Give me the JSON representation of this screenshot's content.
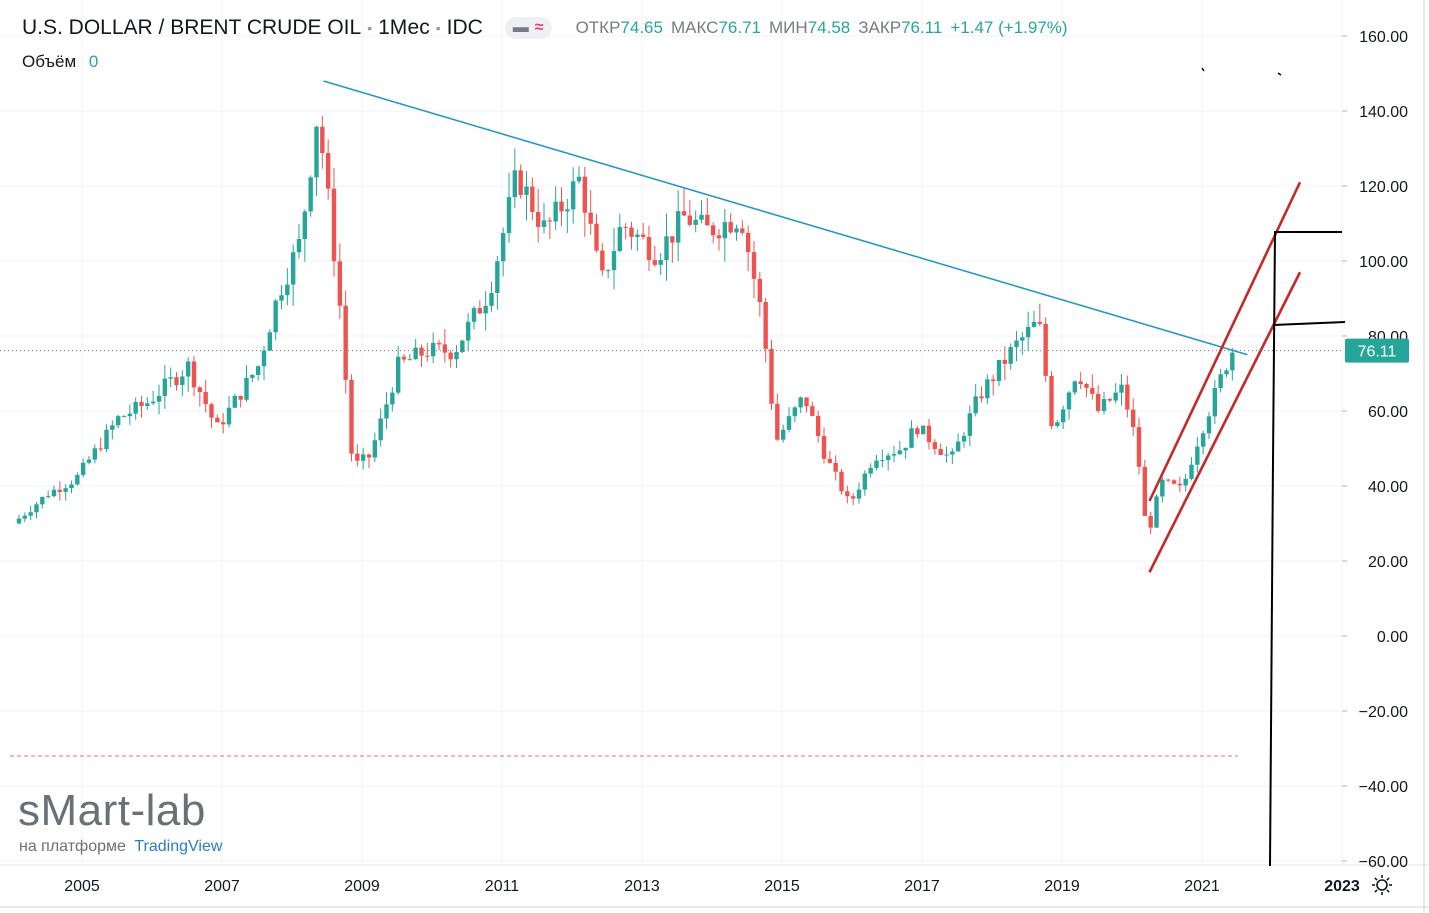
{
  "header": {
    "symbol": "U.S. DOLLAR / BRENT CRUDE OIL",
    "interval": "1Мес",
    "exchange": "IDC",
    "open_label": "ОТКР",
    "open": "74.65",
    "high_label": "МАКС",
    "high": "76.71",
    "low_label": "МИН",
    "low": "74.58",
    "close_label": "ЗАКР",
    "close": "76.11",
    "change": "+1.47 (+1.97%)",
    "volume_label": "Объём",
    "volume": "0"
  },
  "watermark": {
    "brand": "sMart-lab",
    "platform_prefix": "на платформе",
    "platform": "TradingView"
  },
  "icons": [
    "minus-icon",
    "wave-icon",
    "settings-sun-icon"
  ],
  "colors": {
    "up": "#26a69a",
    "down": "#ef5350",
    "trend": "#2196c8",
    "channel": "#c62828"
  },
  "chart_data": {
    "type": "candlestick",
    "timeframe": "monthly",
    "y_axis": {
      "ticks": [
        "160.00",
        "140.00",
        "120.00",
        "100.00",
        "80.00",
        "60.00",
        "40.00",
        "20.00",
        "0.00",
        "−20.00",
        "−40.00",
        "−60.00"
      ],
      "range": [
        -60,
        160
      ]
    },
    "x_axis": {
      "ticks": [
        "2005",
        "2007",
        "2009",
        "2011",
        "2013",
        "2015",
        "2017",
        "2019",
        "2021",
        "2023"
      ],
      "range": [
        2004.1,
        2023.6
      ]
    },
    "last_price": "76.11",
    "key_points": [
      {
        "t": 2004.1,
        "v": 30
      },
      {
        "t": 2004.6,
        "v": 38
      },
      {
        "t": 2005.0,
        "v": 42
      },
      {
        "t": 2005.6,
        "v": 58
      },
      {
        "t": 2006.0,
        "v": 62
      },
      {
        "t": 2006.6,
        "v": 72
      },
      {
        "t": 2006.9,
        "v": 60
      },
      {
        "t": 2007.0,
        "v": 55
      },
      {
        "t": 2007.6,
        "v": 72
      },
      {
        "t": 2007.9,
        "v": 92
      },
      {
        "t": 2008.2,
        "v": 105
      },
      {
        "t": 2008.45,
        "v": 140
      },
      {
        "t": 2008.75,
        "v": 92
      },
      {
        "t": 2008.95,
        "v": 45
      },
      {
        "t": 2009.2,
        "v": 48
      },
      {
        "t": 2009.6,
        "v": 72
      },
      {
        "t": 2010.0,
        "v": 76
      },
      {
        "t": 2010.4,
        "v": 76
      },
      {
        "t": 2010.9,
        "v": 92
      },
      {
        "t": 2011.3,
        "v": 123
      },
      {
        "t": 2011.7,
        "v": 108
      },
      {
        "t": 2012.2,
        "v": 122
      },
      {
        "t": 2012.5,
        "v": 94
      },
      {
        "t": 2012.8,
        "v": 110
      },
      {
        "t": 2013.3,
        "v": 102
      },
      {
        "t": 2013.7,
        "v": 112
      },
      {
        "t": 2014.0,
        "v": 108
      },
      {
        "t": 2014.5,
        "v": 112
      },
      {
        "t": 2014.8,
        "v": 85
      },
      {
        "t": 2015.0,
        "v": 52
      },
      {
        "t": 2015.4,
        "v": 64
      },
      {
        "t": 2015.7,
        "v": 48
      },
      {
        "t": 2016.05,
        "v": 35
      },
      {
        "t": 2016.4,
        "v": 48
      },
      {
        "t": 2016.8,
        "v": 50
      },
      {
        "t": 2017.0,
        "v": 56
      },
      {
        "t": 2017.5,
        "v": 47
      },
      {
        "t": 2017.9,
        "v": 64
      },
      {
        "t": 2018.4,
        "v": 77
      },
      {
        "t": 2018.75,
        "v": 84
      },
      {
        "t": 2018.95,
        "v": 55
      },
      {
        "t": 2019.3,
        "v": 71
      },
      {
        "t": 2019.6,
        "v": 60
      },
      {
        "t": 2019.95,
        "v": 66
      },
      {
        "t": 2020.15,
        "v": 51
      },
      {
        "t": 2020.3,
        "v": 26
      },
      {
        "t": 2020.5,
        "v": 41
      },
      {
        "t": 2020.8,
        "v": 39
      },
      {
        "t": 2021.0,
        "v": 51
      },
      {
        "t": 2021.3,
        "v": 66
      },
      {
        "t": 2021.5,
        "v": 76.11
      }
    ],
    "drawings": [
      {
        "kind": "trendline",
        "color": "#2196c8",
        "from": {
          "t": 2008.45,
          "v": 148
        },
        "to": {
          "t": 2021.65,
          "v": 75
        }
      },
      {
        "kind": "channel-line",
        "color": "#c62828",
        "from": {
          "t": 2020.25,
          "v": 36
        },
        "to": {
          "t": 2022.4,
          "v": 121
        }
      },
      {
        "kind": "channel-line",
        "color": "#c62828",
        "from": {
          "t": 2020.25,
          "v": 17
        },
        "to": {
          "t": 2022.4,
          "v": 97
        }
      }
    ]
  }
}
